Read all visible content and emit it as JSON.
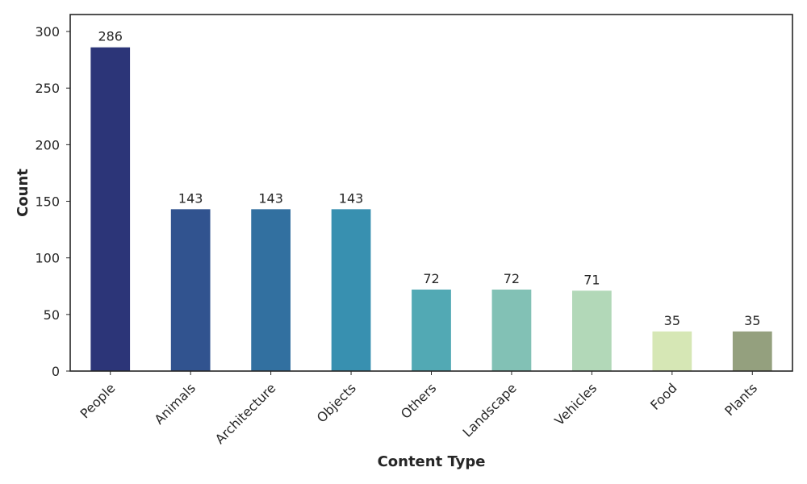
{
  "chart_data": {
    "type": "bar",
    "title": "",
    "xlabel": "Content Type",
    "ylabel": "Count",
    "categories": [
      "People",
      "Animals",
      "Architecture",
      "Objects",
      "Others",
      "Landscape",
      "Vehicles",
      "Food",
      "Plants"
    ],
    "values": [
      286,
      143,
      143,
      143,
      72,
      72,
      71,
      35,
      35
    ],
    "data_labels": [
      "286",
      "143",
      "143",
      "143",
      "72",
      "72",
      "71",
      "35",
      "35"
    ],
    "colors": [
      "#2c3578",
      "#31538f",
      "#3270a0",
      "#3890b0",
      "#52a9b4",
      "#82c1b5",
      "#b2d8b8",
      "#d6e7b5",
      "#94a07e"
    ],
    "ylim": [
      0,
      315
    ],
    "yticks": [
      0,
      50,
      100,
      150,
      200,
      250,
      300
    ],
    "ytick_labels": [
      "0",
      "50",
      "100",
      "150",
      "200",
      "250",
      "300"
    ],
    "grid": false,
    "legend": "none"
  }
}
